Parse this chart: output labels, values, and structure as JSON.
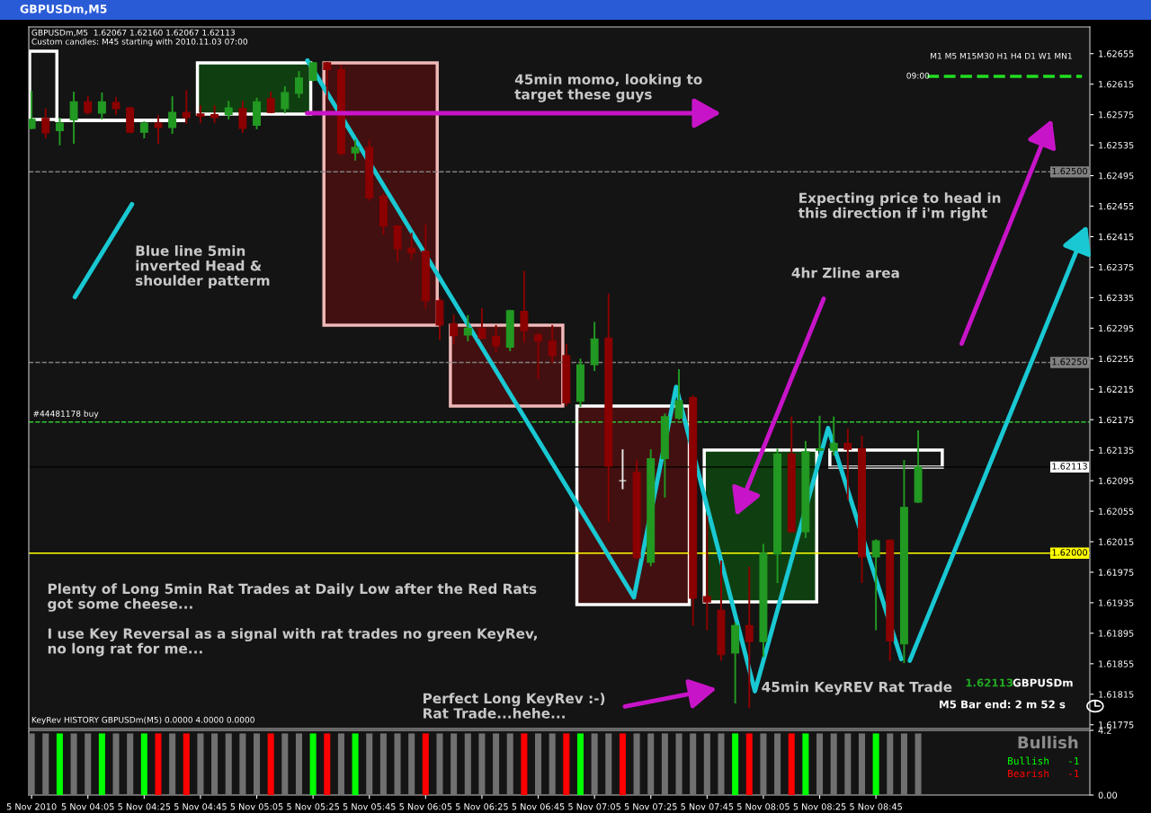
{
  "chart_data": [
    {
      "type": "candlestick",
      "title": "GBPUSDm,M5",
      "x": [
        "2010-11-05T03:45",
        "2010-11-05T03:50",
        "2010-11-05T03:55",
        "2010-11-05T04:00",
        "2010-11-05T04:05",
        "2010-11-05T04:10",
        "2010-11-05T04:15",
        "2010-11-05T04:20",
        "2010-11-05T04:25",
        "2010-11-05T04:30",
        "2010-11-05T04:35",
        "2010-11-05T04:40",
        "2010-11-05T04:45",
        "2010-11-05T04:50",
        "2010-11-05T04:55",
        "2010-11-05T05:00",
        "2010-11-05T05:05",
        "2010-11-05T05:10",
        "2010-11-05T05:15",
        "2010-11-05T05:20",
        "2010-11-05T05:25",
        "2010-11-05T05:30",
        "2010-11-05T05:35",
        "2010-11-05T05:40",
        "2010-11-05T05:45",
        "2010-11-05T05:50",
        "2010-11-05T05:55",
        "2010-11-05T06:00",
        "2010-11-05T06:05",
        "2010-11-05T06:10",
        "2010-11-05T06:15",
        "2010-11-05T06:20",
        "2010-11-05T06:25",
        "2010-11-05T06:30",
        "2010-11-05T06:35",
        "2010-11-05T06:40",
        "2010-11-05T06:45",
        "2010-11-05T06:50",
        "2010-11-05T06:55",
        "2010-11-05T07:00",
        "2010-11-05T07:05",
        "2010-11-05T07:10",
        "2010-11-05T07:15",
        "2010-11-05T07:20",
        "2010-11-05T07:25",
        "2010-11-05T07:30",
        "2010-11-05T07:35",
        "2010-11-05T07:40",
        "2010-11-05T07:45",
        "2010-11-05T07:50",
        "2010-11-05T07:55",
        "2010-11-05T08:00",
        "2010-11-05T08:05",
        "2010-11-05T08:10",
        "2010-11-05T08:15",
        "2010-11-05T08:20",
        "2010-11-05T08:25",
        "2010-11-05T08:30",
        "2010-11-05T08:35",
        "2010-11-05T08:40",
        "2010-11-05T08:45",
        "2010-11-05T08:50",
        "2010-11-05T08:55",
        "2010-11-05T09:00"
      ],
      "ohlc": [
        [
          1.62557,
          1.62605,
          1.62557,
          1.62569
        ],
        [
          1.6257,
          1.62582,
          1.62545,
          1.62551
        ],
        [
          1.62554,
          1.6257,
          1.62536,
          1.62564
        ],
        [
          1.62568,
          1.62604,
          1.62538,
          1.62592
        ],
        [
          1.62592,
          1.62598,
          1.62576,
          1.62578
        ],
        [
          1.62577,
          1.62603,
          1.6257,
          1.62592
        ],
        [
          1.62591,
          1.62597,
          1.62576,
          1.62583
        ],
        [
          1.62584,
          1.62584,
          1.62552,
          1.62552
        ],
        [
          1.62552,
          1.62565,
          1.62545,
          1.62564
        ],
        [
          1.62564,
          1.62573,
          1.62538,
          1.62558
        ],
        [
          1.62558,
          1.62598,
          1.62551,
          1.62578
        ],
        [
          1.62578,
          1.62606,
          1.62564,
          1.62571
        ],
        [
          1.62576,
          1.62586,
          1.62565,
          1.62573
        ],
        [
          1.62575,
          1.62586,
          1.62565,
          1.62571
        ],
        [
          1.62575,
          1.62592,
          1.6257,
          1.62584
        ],
        [
          1.62583,
          1.62592,
          1.62552,
          1.62557
        ],
        [
          1.62561,
          1.62596,
          1.62557,
          1.62592
        ],
        [
          1.62596,
          1.62604,
          1.62578,
          1.62578
        ],
        [
          1.62583,
          1.62611,
          1.62578,
          1.62604
        ],
        [
          1.62603,
          1.62631,
          1.62598,
          1.62623
        ],
        [
          1.6262,
          1.62643,
          1.6262,
          1.62643
        ],
        [
          1.62643,
          1.62643,
          1.62596,
          1.62634
        ],
        [
          1.62634,
          1.62639,
          1.62523,
          1.62524
        ],
        [
          1.62525,
          1.62541,
          1.62516,
          1.62532
        ],
        [
          1.62532,
          1.62541,
          1.62463,
          1.62466
        ],
        [
          1.62468,
          1.62471,
          1.62419,
          1.62429
        ],
        [
          1.62429,
          1.62429,
          1.62383,
          1.62399
        ],
        [
          1.624,
          1.62419,
          1.62386,
          1.62394
        ],
        [
          1.62396,
          1.6243,
          1.62322,
          1.62331
        ],
        [
          1.62331,
          1.62334,
          1.62281,
          1.62299
        ],
        [
          1.62301,
          1.62312,
          1.62275,
          1.62285
        ],
        [
          1.62286,
          1.62311,
          1.62279,
          1.62295
        ],
        [
          1.62295,
          1.6232,
          1.62282,
          1.62282
        ],
        [
          1.62284,
          1.62298,
          1.62265,
          1.62272
        ],
        [
          1.6227,
          1.62318,
          1.62266,
          1.62318
        ],
        [
          1.62317,
          1.62369,
          1.62277,
          1.62292
        ],
        [
          1.62286,
          1.62288,
          1.62229,
          1.62278
        ],
        [
          1.62278,
          1.62298,
          1.6225,
          1.62259
        ],
        [
          1.62259,
          1.62273,
          1.62194,
          1.62197
        ],
        [
          1.62199,
          1.62254,
          1.62193,
          1.62247
        ],
        [
          1.62247,
          1.62302,
          1.6224,
          1.62281
        ],
        [
          1.62282,
          1.62339,
          1.62042,
          1.62114
        ],
        [
          1.62095,
          1.62135,
          1.62085,
          1.62095
        ],
        [
          1.62106,
          1.62121,
          1.61994,
          1.61994
        ],
        [
          1.61988,
          1.62135,
          1.61984,
          1.62124
        ],
        [
          1.62124,
          1.62182,
          1.62074,
          1.62179
        ],
        [
          1.62177,
          1.6224,
          1.62176,
          1.622
        ],
        [
          1.62204,
          1.62206,
          1.61906,
          1.61941
        ],
        [
          1.61943,
          1.62048,
          1.619,
          1.61936
        ],
        [
          1.61925,
          1.61989,
          1.6186,
          1.61867
        ],
        [
          1.61869,
          1.61908,
          1.61804,
          1.61905
        ],
        [
          1.61905,
          1.61981,
          1.61798,
          1.61884
        ],
        [
          1.61884,
          1.62011,
          1.61865,
          1.62
        ],
        [
          1.61999,
          1.62136,
          1.61962,
          1.6213
        ],
        [
          1.6213,
          1.62178,
          1.62028,
          1.62028
        ],
        [
          1.62028,
          1.62146,
          1.62021,
          1.62133
        ],
        [
          1.62135,
          1.62179,
          1.62135,
          1.62137
        ],
        [
          1.62135,
          1.62178,
          1.62129,
          1.62144
        ],
        [
          1.62144,
          1.62162,
          1.62071,
          1.62136
        ],
        [
          1.62137,
          1.62153,
          1.61962,
          1.61995
        ],
        [
          1.61995,
          1.62017,
          1.619,
          1.62016
        ],
        [
          1.62017,
          1.62017,
          1.6186,
          1.61885
        ],
        [
          1.61881,
          1.62121,
          1.61857,
          1.6206
        ],
        [
          1.62067,
          1.6216,
          1.62067,
          1.62113
        ]
      ],
      "colors": [
        "#229922",
        "#8b0000",
        "#229922",
        "#229922",
        "#8b0000",
        "#229922",
        "#8b0000",
        "#8b0000",
        "#229922",
        "#8b0000",
        "#229922",
        "#8b0000",
        "#8b0000",
        "#8b0000",
        "#229922",
        "#8b0000",
        "#229922",
        "#8b0000",
        "#229922",
        "#229922",
        "#229922",
        "#8b0000",
        "#8b0000",
        "#229922",
        "#8b0000",
        "#8b0000",
        "#8b0000",
        "#8b0000",
        "#8b0000",
        "#8b0000",
        "#8b0000",
        "#229922",
        "#8b0000",
        "#8b0000",
        "#229922",
        "#8b0000",
        "#8b0000",
        "#8b0000",
        "#8b0000",
        "#229922",
        "#229922",
        "#8b0000",
        "#e6e6e6",
        "#8b0000",
        "#229922",
        "#229922",
        "#229922",
        "#8b0000",
        "#8b0000",
        "#8b0000",
        "#229922",
        "#8b0000",
        "#229922",
        "#229922",
        "#8b0000",
        "#229922",
        "#229922",
        "#229922",
        "#8b0000",
        "#8b0000",
        "#229922",
        "#8b0000",
        "#229922",
        "#229922"
      ],
      "series": [
        {
          "type": "line",
          "color": "#19c8d2",
          "x": [
            "2010-11-05T05:23",
            "2010-11-05T07:19",
            "2010-11-05T07:34",
            "2010-11-05T08:02",
            "2010-11-05T08:28",
            "2010-11-05T08:54"
          ],
          "values": [
            1.62646,
            1.61942,
            1.62218,
            1.61819,
            1.62164,
            1.61861
          ]
        }
      ],
      "xlim": [
        "2010-11-05T03:44",
        "2010-11-05T10:01"
      ],
      "ylim": [
        1.6177,
        1.6269
      ],
      "yticks": [
        1.61775,
        1.61815,
        1.61855,
        1.61895,
        1.61935,
        1.61975,
        1.62015,
        1.62055,
        1.62095,
        1.62135,
        1.62175,
        1.62215,
        1.62255,
        1.62295,
        1.62335,
        1.62375,
        1.62415,
        1.62455,
        1.62495,
        1.62535,
        1.62575,
        1.62615,
        1.62655
      ],
      "tick_labels": "y",
      "ref_lines": [
        {
          "axis": "y",
          "value": 1.625,
          "label": "1.62500",
          "color": "#808080",
          "line_style": "dashed"
        },
        {
          "axis": "y",
          "value": 1.6225,
          "label": "1.62250",
          "color": "#808080",
          "line_style": "dashed"
        },
        {
          "axis": "y",
          "value": 1.62172,
          "color": "#32c832",
          "line_style": "dashed"
        },
        {
          "axis": "y",
          "value": 1.62113,
          "label": "1.62113",
          "color": "#000000",
          "line_style": "solid"
        },
        {
          "axis": "y",
          "value": 1.62,
          "label": "1.62000",
          "color": "#ffff00",
          "line_style": "solid"
        }
      ],
      "annotations": [
        "GBPUSDm,M5  1.62067 1.62160 1.62067 1.62113",
        "Custom candles: M45 starting with 2010.11.03 07:00",
        "M1 M5 M15M30 H1 H4 D1 W1 MN1",
        "09:00",
        "45min momo, looking to\ntarget these guys",
        "Expecting price to head in\nthis direction if i'm right",
        "Blue line 5min\ninverted Head &\nshoulder patterm",
        "4hr Zline area",
        {
          "text": "#44481178 buy",
          "x": "2010-11-05T03:45",
          "y": 1.62172
        },
        "Plenty of Long 5min Rat Trades at Daily Low after the Red Rats\ngot some cheese...\n\nI use Key Reversal as a signal with rat trades no green KeyRev,\nno long rat for me...",
        "Perfect Long KeyRev :-)\nRat Trade...hehe...",
        "45min KeyREV Rat Trade",
        "1.62113",
        "GBPUSDm",
        "M5 Bar end: 2 m 52 s"
      ]
    },
    {
      "type": "bar",
      "x": [
        "2010-11-05T03:45",
        "2010-11-05T03:50",
        "2010-11-05T03:55",
        "2010-11-05T04:00",
        "2010-11-05T04:05",
        "2010-11-05T04:10",
        "2010-11-05T04:15",
        "2010-11-05T04:20",
        "2010-11-05T04:25",
        "2010-11-05T04:30",
        "2010-11-05T04:35",
        "2010-11-05T04:40",
        "2010-11-05T04:45",
        "2010-11-05T04:50",
        "2010-11-05T04:55",
        "2010-11-05T05:00",
        "2010-11-05T05:05",
        "2010-11-05T05:10",
        "2010-11-05T05:15",
        "2010-11-05T05:20",
        "2010-11-05T05:25",
        "2010-11-05T05:30",
        "2010-11-05T05:35",
        "2010-11-05T05:40",
        "2010-11-05T05:45",
        "2010-11-05T05:50",
        "2010-11-05T05:55",
        "2010-11-05T06:00",
        "2010-11-05T06:05",
        "2010-11-05T06:10",
        "2010-11-05T06:15",
        "2010-11-05T06:20",
        "2010-11-05T06:25",
        "2010-11-05T06:30",
        "2010-11-05T06:35",
        "2010-11-05T06:40",
        "2010-11-05T06:45",
        "2010-11-05T06:50",
        "2010-11-05T06:55",
        "2010-11-05T07:00",
        "2010-11-05T07:05",
        "2010-11-05T07:10",
        "2010-11-05T07:15",
        "2010-11-05T07:20",
        "2010-11-05T07:25",
        "2010-11-05T07:30",
        "2010-11-05T07:35",
        "2010-11-05T07:40",
        "2010-11-05T07:45",
        "2010-11-05T07:50",
        "2010-11-05T07:55",
        "2010-11-05T08:00",
        "2010-11-05T08:05",
        "2010-11-05T08:10",
        "2010-11-05T08:15",
        "2010-11-05T08:20",
        "2010-11-05T08:25",
        "2010-11-05T08:30",
        "2010-11-05T08:35",
        "2010-11-05T08:40",
        "2010-11-05T08:45",
        "2010-11-05T08:50",
        "2010-11-05T08:55",
        "2010-11-05T09:00"
      ],
      "values": [
        4,
        4,
        4,
        4,
        4,
        4,
        4,
        4,
        4,
        4,
        4,
        4,
        4,
        4,
        4,
        4,
        4,
        4,
        4,
        4,
        4,
        4,
        4,
        4,
        4,
        4,
        4,
        4,
        4,
        4,
        4,
        4,
        4,
        4,
        4,
        4,
        4,
        4,
        4,
        4,
        4,
        4,
        4,
        4,
        4,
        4,
        4,
        4,
        4,
        4,
        4,
        4,
        4,
        4,
        4,
        4,
        4,
        4,
        4,
        4,
        4,
        4,
        4,
        4
      ],
      "colors": [
        "#707070",
        "#707070",
        "#00ff00",
        "#707070",
        "#707070",
        "#00ff00",
        "#707070",
        "#707070",
        "#00ff00",
        "#ff0000",
        "#707070",
        "#ff0000",
        "#707070",
        "#707070",
        "#707070",
        "#707070",
        "#707070",
        "#ff0000",
        "#707070",
        "#707070",
        "#00ff00",
        "#ff0000",
        "#707070",
        "#00ff00",
        "#707070",
        "#707070",
        "#707070",
        "#707070",
        "#ff0000",
        "#707070",
        "#707070",
        "#707070",
        "#707070",
        "#707070",
        "#707070",
        "#ff0000",
        "#707070",
        "#707070",
        "#ff0000",
        "#00ff00",
        "#707070",
        "#707070",
        "#ff0000",
        "#707070",
        "#707070",
        "#707070",
        "#707070",
        "#707070",
        "#707070",
        "#707070",
        "#00ff00",
        "#ff0000",
        "#707070",
        "#707070",
        "#ff0000",
        "#00ff00",
        "#707070",
        "#707070",
        "#707070",
        "#707070",
        "#00ff00",
        "#707070",
        "#707070",
        "#707070"
      ],
      "xlim": [
        "2010-11-05T03:44",
        "2010-11-05T10:01"
      ],
      "xticks": [
        {
          "value": "2010-11-05T03:45",
          "label": "5 Nov 2010"
        },
        {
          "value": "2010-11-05T04:05",
          "label": "5 Nov 04:05"
        },
        {
          "value": "2010-11-05T04:25",
          "label": "5 Nov 04:25"
        },
        {
          "value": "2010-11-05T04:45",
          "label": "5 Nov 04:45"
        },
        {
          "value": "2010-11-05T05:05",
          "label": "5 Nov 05:05"
        },
        {
          "value": "2010-11-05T05:25",
          "label": "5 Nov 05:25"
        },
        {
          "value": "2010-11-05T05:45",
          "label": "5 Nov 05:45"
        },
        {
          "value": "2010-11-05T06:05",
          "label": "5 Nov 06:05"
        },
        {
          "value": "2010-11-05T06:25",
          "label": "5 Nov 06:25"
        },
        {
          "value": "2010-11-05T06:45",
          "label": "5 Nov 06:45"
        },
        {
          "value": "2010-11-05T07:05",
          "label": "5 Nov 07:05"
        },
        {
          "value": "2010-11-05T07:25",
          "label": "5 Nov 07:25"
        },
        {
          "value": "2010-11-05T07:45",
          "label": "5 Nov 07:45"
        },
        {
          "value": "2010-11-05T08:05",
          "label": "5 Nov 08:05"
        },
        {
          "value": "2010-11-05T08:25",
          "label": "5 Nov 08:25"
        },
        {
          "value": "2010-11-05T08:45",
          "label": "5 Nov 08:45"
        }
      ],
      "ylim": [
        0,
        4.2
      ],
      "yticks": [
        {
          "value": 4.2,
          "label": "4.2"
        },
        {
          "value": 0,
          "label": "0.00"
        }
      ],
      "annotations": [
        "KeyRev HISTORY GBPUSDm(M5) 0.0000 4.0000 0.0000",
        "Bullish",
        "Bullish   -1",
        "Bearish   -1"
      ]
    }
  ]
}
